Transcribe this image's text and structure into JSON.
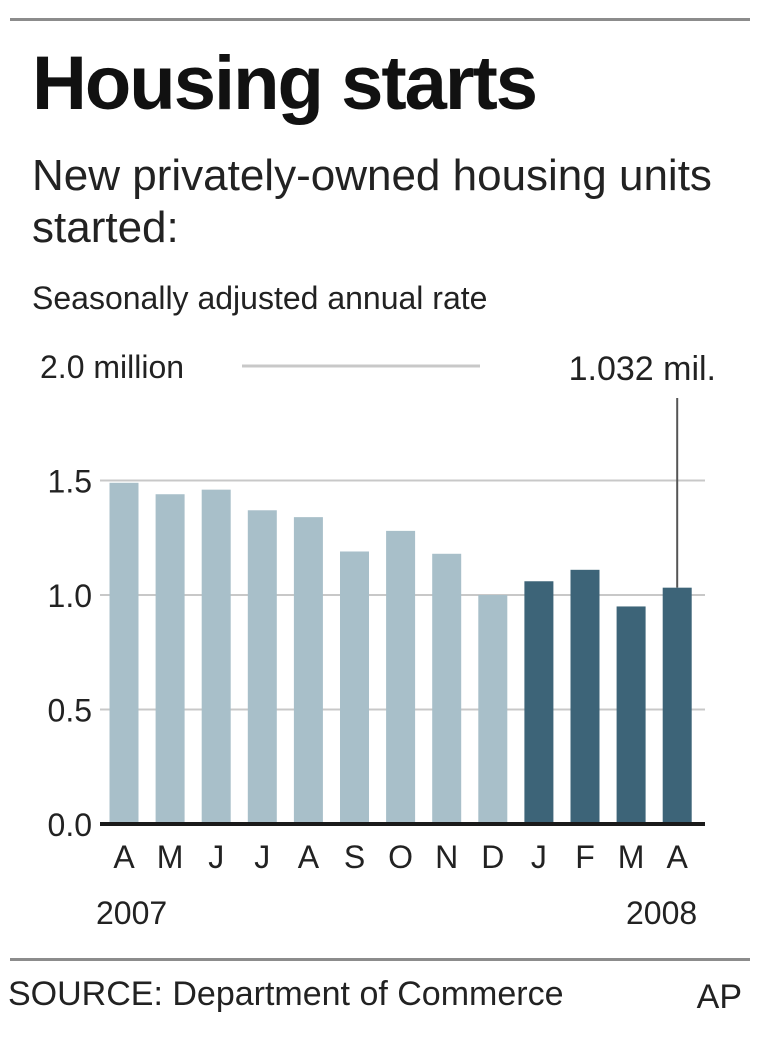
{
  "header": {
    "title": "Housing starts",
    "subtitle": "New privately-owned housing units started:",
    "note": "Seasonally adjusted annual rate"
  },
  "footer": {
    "source": "SOURCE: Department of Commerce",
    "credit": "AP"
  },
  "colors": {
    "bar_2007": "#a8bfc9",
    "bar_2008": "#3d6478",
    "grid": "#c8c8c8",
    "axis": "#1a1a1a"
  },
  "chart_data": {
    "type": "bar",
    "title": "Housing starts",
    "ylim": [
      0,
      2.0
    ],
    "yticks": [
      {
        "value": 0.0,
        "label": "0.0"
      },
      {
        "value": 0.5,
        "label": "0.5"
      },
      {
        "value": 1.0,
        "label": "1.0"
      },
      {
        "value": 1.5,
        "label": "1.5"
      },
      {
        "value": 2.0,
        "label": "2.0 million"
      }
    ],
    "grid": true,
    "categories": [
      "A",
      "M",
      "J",
      "J",
      "A",
      "S",
      "O",
      "N",
      "D",
      "J",
      "F",
      "M",
      "A"
    ],
    "year_labels": [
      {
        "label": "2007",
        "at_index": 0
      },
      {
        "label": "2008",
        "at_index": 12
      }
    ],
    "values": [
      1.49,
      1.44,
      1.46,
      1.37,
      1.34,
      1.19,
      1.28,
      1.18,
      1.0,
      1.06,
      1.11,
      0.95,
      1.032
    ],
    "series_year": [
      2007,
      2007,
      2007,
      2007,
      2007,
      2007,
      2007,
      2007,
      2007,
      2008,
      2008,
      2008,
      2008
    ],
    "annotation": {
      "label": "1.032 mil.",
      "index": 12,
      "value": 1.032
    }
  }
}
